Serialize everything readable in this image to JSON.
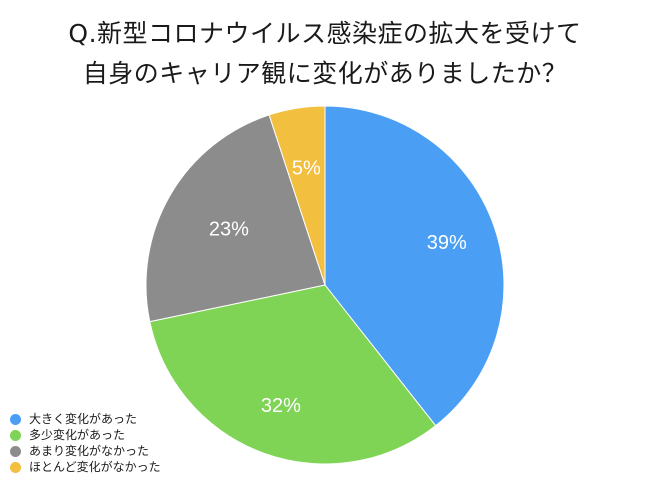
{
  "title": {
    "line1": "Q.新型コロナウイルス感染症の拡大を受けて",
    "line2": "自身のキャリア観に変化がありましたか？"
  },
  "chart_data": {
    "type": "pie",
    "title": "Q.新型コロナウイルス感染症の拡大を受けて自身のキャリア観に変化がありましたか？",
    "categories": [
      "大きく変化があった",
      "多少変化があった",
      "あまり変化がなかった",
      "ほとんど変化がなかった"
    ],
    "values": [
      39,
      32,
      23,
      5
    ],
    "labels": [
      "39%",
      "32%",
      "23%",
      "5%"
    ],
    "colors": [
      "#4a9ff5",
      "#7fd455",
      "#8c8c8c",
      "#f2bf3e"
    ],
    "start": "12 o'clock",
    "direction": "clockwise",
    "legend": "bottom-left"
  }
}
